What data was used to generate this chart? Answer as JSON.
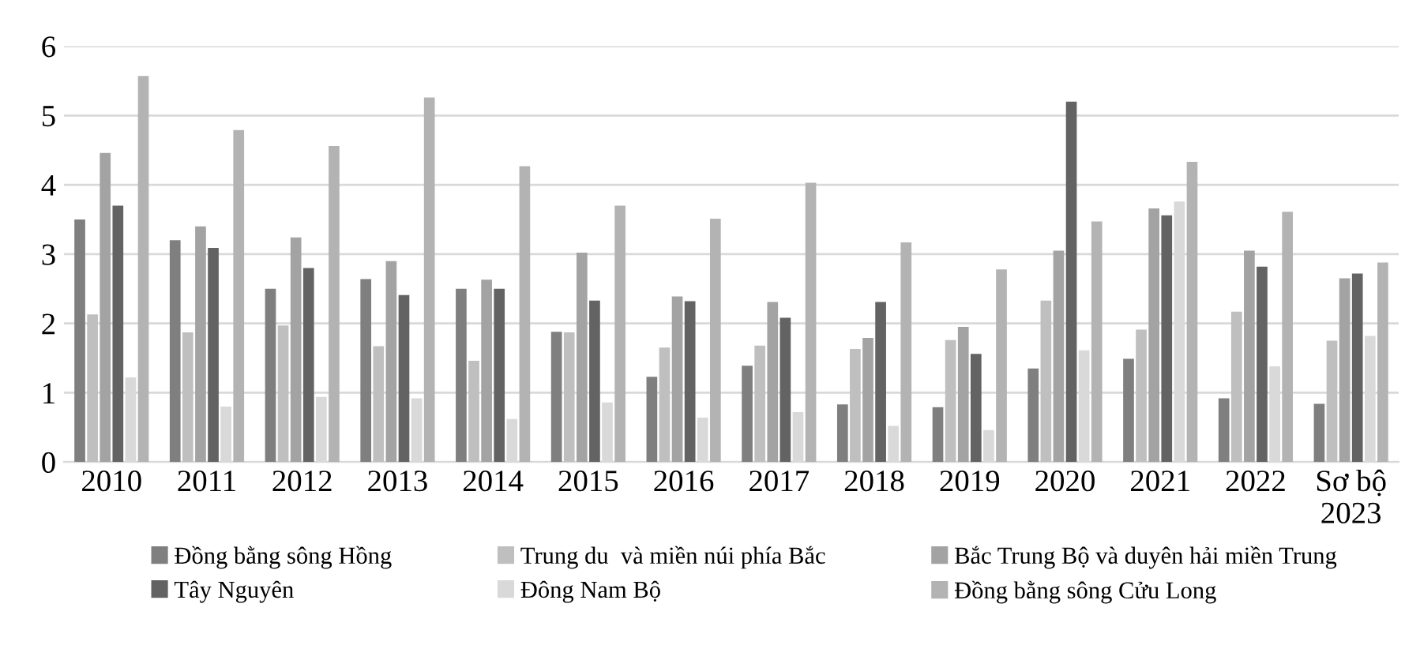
{
  "chart_data": {
    "type": "bar",
    "categories": [
      "2010",
      "2011",
      "2012",
      "2013",
      "2014",
      "2015",
      "2016",
      "2017",
      "2018",
      "2019",
      "2020",
      "2021",
      "2022",
      "Sơ bộ\n2023"
    ],
    "series": [
      {
        "name": "Đồng bằng sông Hồng",
        "color": "#7f7f7f",
        "values": [
          3.5,
          3.2,
          2.5,
          2.64,
          2.5,
          1.88,
          1.23,
          1.39,
          0.83,
          0.79,
          1.35,
          1.49,
          0.92,
          0.84
        ]
      },
      {
        "name": "Trung du  và miền núi phía Bắc",
        "color": "#bfbfbf",
        "values": [
          2.13,
          1.87,
          1.97,
          1.67,
          1.46,
          1.87,
          1.65,
          1.68,
          1.63,
          1.76,
          2.33,
          1.91,
          2.17,
          1.75
        ]
      },
      {
        "name": "Bắc Trung Bộ và duyên hải miền Trung",
        "color": "#a3a3a3",
        "values": [
          4.46,
          3.4,
          3.24,
          2.9,
          2.63,
          3.02,
          2.39,
          2.31,
          1.79,
          1.95,
          3.05,
          3.66,
          3.05,
          2.65
        ]
      },
      {
        "name": "Tây Nguyên",
        "color": "#636363",
        "values": [
          3.7,
          3.09,
          2.8,
          2.41,
          2.5,
          2.33,
          2.32,
          2.08,
          2.31,
          1.56,
          5.2,
          3.56,
          2.82,
          2.72
        ]
      },
      {
        "name": "Đông Nam Bộ",
        "color": "#d9d9d9",
        "values": [
          1.22,
          0.8,
          0.94,
          0.92,
          0.62,
          0.86,
          0.64,
          0.72,
          0.52,
          0.46,
          1.61,
          3.76,
          1.38,
          1.82
        ]
      },
      {
        "name": "Đồng bằng sông Cửu Long",
        "color": "#b3b3b3",
        "values": [
          5.57,
          4.79,
          4.56,
          5.26,
          4.27,
          3.7,
          3.51,
          4.03,
          3.17,
          2.78,
          3.47,
          4.33,
          3.61,
          2.88
        ]
      }
    ],
    "ylim": [
      0,
      6
    ],
    "yticks": [
      0,
      1,
      2,
      3,
      4,
      5,
      6
    ],
    "grid": "y",
    "legend": "bottom"
  }
}
